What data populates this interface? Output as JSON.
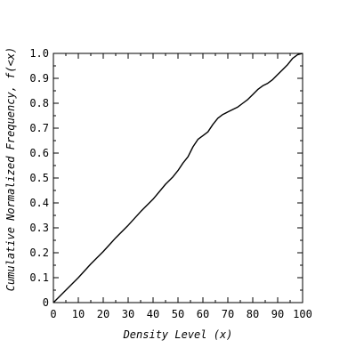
{
  "chart_data": {
    "type": "line",
    "title": "",
    "xlabel": "Density Level (x)",
    "ylabel": "Cumulative Normalized Frequency, f(<x)",
    "xlim": [
      0,
      100
    ],
    "ylim": [
      0,
      1.0
    ],
    "xticks": [
      "0",
      "10",
      "20",
      "30",
      "40",
      "50",
      "60",
      "70",
      "80",
      "90",
      "100"
    ],
    "yticks": [
      "0",
      "0.1",
      "0.2",
      "0.3",
      "0.4",
      "0.5",
      "0.6",
      "0.7",
      "0.8",
      "0.9",
      "1.0"
    ],
    "grid": false,
    "legend": "none",
    "series": [
      {
        "x": [
          0,
          5,
          10,
          15,
          20,
          25,
          30,
          35,
          40,
          45,
          48,
          50,
          52,
          54,
          56,
          58,
          60,
          62,
          64,
          66,
          68,
          70,
          72,
          74,
          76,
          78,
          80,
          82,
          84,
          86,
          88,
          90,
          92,
          94,
          96,
          98,
          100
        ],
        "y": [
          0,
          0.05,
          0.1,
          0.155,
          0.205,
          0.26,
          0.31,
          0.365,
          0.415,
          0.475,
          0.505,
          0.53,
          0.56,
          0.585,
          0.625,
          0.655,
          0.67,
          0.685,
          0.715,
          0.74,
          0.755,
          0.765,
          0.775,
          0.785,
          0.8,
          0.815,
          0.835,
          0.855,
          0.87,
          0.88,
          0.895,
          0.915,
          0.935,
          0.955,
          0.98,
          0.995,
          1.0
        ]
      }
    ]
  }
}
